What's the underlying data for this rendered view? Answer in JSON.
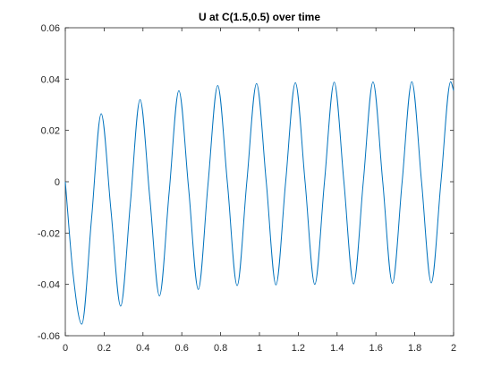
{
  "chart_data": {
    "type": "line",
    "title": "U at C(1.5,0.5) over time",
    "xlabel": "",
    "ylabel": "",
    "xlim": [
      0,
      2
    ],
    "ylim": [
      -0.06,
      0.06
    ],
    "xticks": [
      0,
      0.2,
      0.4,
      0.6,
      0.8,
      1,
      1.2,
      1.4,
      1.6,
      1.8,
      2
    ],
    "xtick_labels": [
      "0",
      "0.2",
      "0.4",
      "0.6",
      "0.8",
      "1",
      "1.2",
      "1.4",
      "1.6",
      "1.8",
      "2"
    ],
    "yticks": [
      -0.06,
      -0.04,
      -0.02,
      0,
      0.02,
      0.04,
      0.06
    ],
    "ytick_labels": [
      "-0.06",
      "-0.04",
      "-0.02",
      "0",
      "0.02",
      "0.04",
      "0.06"
    ],
    "grid": false,
    "line_color": "#0072bd",
    "series": [
      {
        "name": "",
        "x": [
          0,
          0.04,
          0.085,
          0.135,
          0.185,
          0.235,
          0.285,
          0.335,
          0.385,
          0.435,
          0.485,
          0.535,
          0.585,
          0.635,
          0.685,
          0.735,
          0.785,
          0.835,
          0.885,
          0.935,
          0.985,
          1.035,
          1.085,
          1.135,
          1.185,
          1.235,
          1.285,
          1.335,
          1.385,
          1.435,
          1.485,
          1.535,
          1.585,
          1.635,
          1.685,
          1.735,
          1.785,
          1.835,
          1.885,
          1.935,
          1.985,
          2.0
        ],
        "y": [
          0,
          -0.036,
          -0.0555,
          -0.0145,
          0.0265,
          -0.011,
          -0.0485,
          -0.0085,
          0.032,
          -0.006,
          -0.0445,
          -0.004,
          0.0355,
          -0.0025,
          -0.042,
          -0.001,
          0.0375,
          -0.0005,
          -0.0405,
          0,
          0.0383,
          0,
          -0.0402,
          0,
          0.0386,
          0,
          -0.04,
          0,
          0.0388,
          0,
          -0.0398,
          0,
          0.0389,
          0,
          -0.0396,
          0,
          0.039,
          0,
          -0.0394,
          0,
          0.039,
          0.0355
        ]
      }
    ]
  }
}
